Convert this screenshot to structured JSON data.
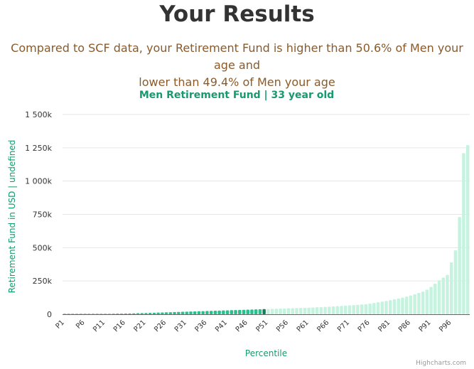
{
  "page": {
    "title": "Your Results",
    "summary_line1": "Compared to SCF data, your Retirement Fund is higher than 50.6% of Men your age and",
    "summary_line2": "lower than 49.4% of Men your age"
  },
  "colors": {
    "accent": "#179a6e",
    "bar_highlight": "#2ac08e",
    "bar_marker": "#13805b",
    "bar_light": "#c6f3df",
    "title_text": "#333333",
    "summary_text": "#8a5a2b"
  },
  "credit": "Highcharts.com",
  "chart_data": {
    "type": "bar",
    "title": "Men Retirement Fund | 33 year old",
    "xlabel": "Percentile",
    "ylabel": "Retirement Fund in USD | undefined",
    "ylim": [
      0,
      1500000
    ],
    "yticks": [
      0,
      250000,
      500000,
      750000,
      1000000,
      1250000,
      1500000
    ],
    "ytick_labels": [
      "0",
      "250k",
      "500k",
      "750k",
      "1 000k",
      "1 250k",
      "1 500k"
    ],
    "xtick_labels": [
      "P1",
      "P6",
      "P11",
      "P16",
      "P21",
      "P26",
      "P31",
      "P36",
      "P41",
      "P46",
      "P51",
      "P56",
      "P61",
      "P66",
      "P71",
      "P76",
      "P81",
      "P86",
      "P91",
      "P96"
    ],
    "grid": true,
    "user_percentile": 50,
    "categories": [
      "P1",
      "P2",
      "P3",
      "P4",
      "P5",
      "P6",
      "P7",
      "P8",
      "P9",
      "P10",
      "P11",
      "P12",
      "P13",
      "P14",
      "P15",
      "P16",
      "P17",
      "P18",
      "P19",
      "P20",
      "P21",
      "P22",
      "P23",
      "P24",
      "P25",
      "P26",
      "P27",
      "P28",
      "P29",
      "P30",
      "P31",
      "P32",
      "P33",
      "P34",
      "P35",
      "P36",
      "P37",
      "P38",
      "P39",
      "P40",
      "P41",
      "P42",
      "P43",
      "P44",
      "P45",
      "P46",
      "P47",
      "P48",
      "P49",
      "P50",
      "P51",
      "P52",
      "P53",
      "P54",
      "P55",
      "P56",
      "P57",
      "P58",
      "P59",
      "P60",
      "P61",
      "P62",
      "P63",
      "P64",
      "P65",
      "P66",
      "P67",
      "P68",
      "P69",
      "P70",
      "P71",
      "P72",
      "P73",
      "P74",
      "P75",
      "P76",
      "P77",
      "P78",
      "P79",
      "P80",
      "P81",
      "P82",
      "P83",
      "P84",
      "P85",
      "P86",
      "P87",
      "P88",
      "P89",
      "P90",
      "P91",
      "P92",
      "P93",
      "P94",
      "P95",
      "P96",
      "P97",
      "P98",
      "P99",
      "P100"
    ],
    "values": [
      0,
      0,
      200,
      500,
      800,
      1200,
      1600,
      2000,
      2400,
      2800,
      3200,
      3600,
      4000,
      4400,
      4800,
      5500,
      6200,
      7000,
      7800,
      8600,
      9500,
      10500,
      11500,
      12500,
      13500,
      14500,
      15500,
      16500,
      17500,
      18500,
      19500,
      20500,
      21500,
      22500,
      23500,
      24500,
      25500,
      26500,
      27500,
      28500,
      29500,
      30500,
      31500,
      32500,
      33500,
      34500,
      35500,
      36500,
      37500,
      38500,
      39500,
      40500,
      41500,
      42500,
      43500,
      44500,
      45500,
      46500,
      47500,
      48500,
      49500,
      51000,
      52500,
      54000,
      55500,
      57000,
      59000,
      61000,
      63000,
      65000,
      67000,
      69000,
      71000,
      73500,
      76000,
      80000,
      85000,
      90000,
      95000,
      100000,
      106000,
      112000,
      118000,
      125000,
      133000,
      141000,
      150000,
      160000,
      170000,
      185000,
      205000,
      230000,
      255000,
      275000,
      295000,
      390000,
      480000,
      730000,
      1210000,
      1270000
    ]
  }
}
